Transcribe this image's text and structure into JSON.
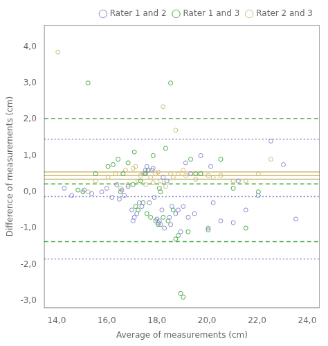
{
  "chart_data": {
    "type": "scatter",
    "xlabel": "Average of measurements (cm)",
    "ylabel": "Difference of measurements (cm)",
    "xlim": [
      13.5,
      24.5
    ],
    "ylim": [
      -3.2,
      4.6
    ],
    "xticks": [
      {
        "value": 14.0,
        "label": "14,0"
      },
      {
        "value": 16.0,
        "label": "16,0"
      },
      {
        "value": 18.0,
        "label": "18,0"
      },
      {
        "value": 20.0,
        "label": "20,0"
      },
      {
        "value": 22.0,
        "label": "22,0"
      },
      {
        "value": 24.0,
        "label": "24,0"
      }
    ],
    "yticks": [
      {
        "value": -3.0,
        "label": "-3,0"
      },
      {
        "value": -2.0,
        "label": "-2,0"
      },
      {
        "value": -1.0,
        "label": "-1,0"
      },
      {
        "value": 0.0,
        "label": "0,0"
      },
      {
        "value": 1.0,
        "label": "1,0"
      },
      {
        "value": 2.0,
        "label": "2,0"
      },
      {
        "value": 3.0,
        "label": "3,0"
      },
      {
        "value": 4.0,
        "label": "4,0"
      }
    ],
    "grid": false,
    "legend": "upper right",
    "series": [
      {
        "name": "Rater 1 and 2",
        "color": "#8888cc",
        "marker": "open circle",
        "line_style": "dotted",
        "lines": [
          1.45,
          -0.13,
          -1.85
        ],
        "x": [
          14.3,
          14.6,
          15.1,
          15.4,
          15.8,
          16.0,
          16.2,
          16.4,
          16.5,
          16.6,
          16.7,
          16.85,
          17.0,
          17.05,
          17.1,
          17.2,
          17.3,
          17.4,
          17.5,
          17.55,
          17.6,
          17.7,
          17.8,
          17.85,
          17.9,
          18.0,
          18.05,
          18.1,
          18.15,
          18.2,
          18.25,
          18.3,
          18.4,
          18.5,
          18.55,
          18.6,
          18.75,
          18.85,
          18.95,
          19.05,
          19.15,
          19.25,
          19.35,
          19.5,
          19.75,
          20.05,
          20.15,
          20.25,
          20.55,
          21.05,
          21.25,
          21.55,
          22.05,
          22.55,
          23.05,
          23.55
        ],
        "values": [
          0.1,
          -0.1,
          0.05,
          -0.05,
          0.0,
          0.1,
          -0.15,
          0.2,
          -0.2,
          0.05,
          -0.1,
          0.15,
          -0.5,
          -0.8,
          -0.7,
          -0.6,
          -0.3,
          -0.4,
          0.5,
          0.6,
          0.7,
          -0.3,
          0.6,
          0.65,
          -0.15,
          -0.75,
          -0.85,
          -0.8,
          -0.9,
          -0.5,
          0.4,
          -1.0,
          0.3,
          -0.7,
          -0.9,
          -0.4,
          -0.6,
          -0.5,
          -1.1,
          -0.4,
          0.8,
          -0.7,
          0.5,
          -0.6,
          1.0,
          -1.0,
          0.7,
          -0.3,
          -0.8,
          -0.85,
          0.3,
          -0.5,
          -0.1,
          1.4,
          0.75,
          -0.75
        ]
      },
      {
        "name": "Rater 1 and 3",
        "color": "#44aa44",
        "marker": "open circle",
        "line_style": "dashed",
        "lines": [
          2.02,
          0.22,
          -1.37
        ],
        "x": [
          14.85,
          15.05,
          15.25,
          15.55,
          16.05,
          16.25,
          16.45,
          16.55,
          16.65,
          16.85,
          17.05,
          17.1,
          17.15,
          17.25,
          17.35,
          17.45,
          17.55,
          17.6,
          17.65,
          17.75,
          17.85,
          17.95,
          18.05,
          18.1,
          18.15,
          18.25,
          18.35,
          18.45,
          18.55,
          18.65,
          18.75,
          18.85,
          18.95,
          19.05,
          19.25,
          19.35,
          19.55,
          19.75,
          20.05,
          20.55,
          21.05,
          21.55,
          22.05
        ],
        "values": [
          0.05,
          0.0,
          3.0,
          0.5,
          0.7,
          0.75,
          0.9,
          0.0,
          0.5,
          0.8,
          0.2,
          1.1,
          -0.4,
          -0.5,
          0.3,
          -0.3,
          0.5,
          -0.6,
          0.6,
          -0.7,
          1.0,
          -0.8,
          -0.9,
          0.1,
          0.0,
          -0.7,
          1.2,
          -0.8,
          3.0,
          -0.5,
          -1.3,
          -1.2,
          -2.8,
          -2.9,
          -1.1,
          0.9,
          0.5,
          0.5,
          -1.05,
          0.9,
          0.1,
          -1.0,
          0.0
        ]
      },
      {
        "name": "Rater 2 and 3",
        "color": "#ccbb77",
        "marker": "open circle",
        "line_style": "solid",
        "lines": [
          0.35,
          0.45,
          0.55
        ],
        "x": [
          14.05,
          15.25,
          15.55,
          16.05,
          16.35,
          16.55,
          16.75,
          16.85,
          17.05,
          17.15,
          17.25,
          17.35,
          17.45,
          17.55,
          17.65,
          17.75,
          17.85,
          17.95,
          18.05,
          18.15,
          18.25,
          18.35,
          18.55,
          18.65,
          18.75,
          18.85,
          19.05,
          19.15,
          19.35,
          19.55,
          19.75,
          20.05,
          20.25,
          20.55,
          21.05,
          21.55,
          22.05,
          22.55
        ],
        "values": [
          3.85,
          0.0,
          0.3,
          0.4,
          0.5,
          0.1,
          0.6,
          0.2,
          0.65,
          0.7,
          0.3,
          0.45,
          0.5,
          0.2,
          0.6,
          0.4,
          0.25,
          0.5,
          0.55,
          0.3,
          2.35,
          0.15,
          0.5,
          0.4,
          1.7,
          0.5,
          0.6,
          0.45,
          0.5,
          0.35,
          0.5,
          0.45,
          0.4,
          0.45,
          0.3,
          0.3,
          0.5,
          0.9
        ]
      }
    ]
  }
}
